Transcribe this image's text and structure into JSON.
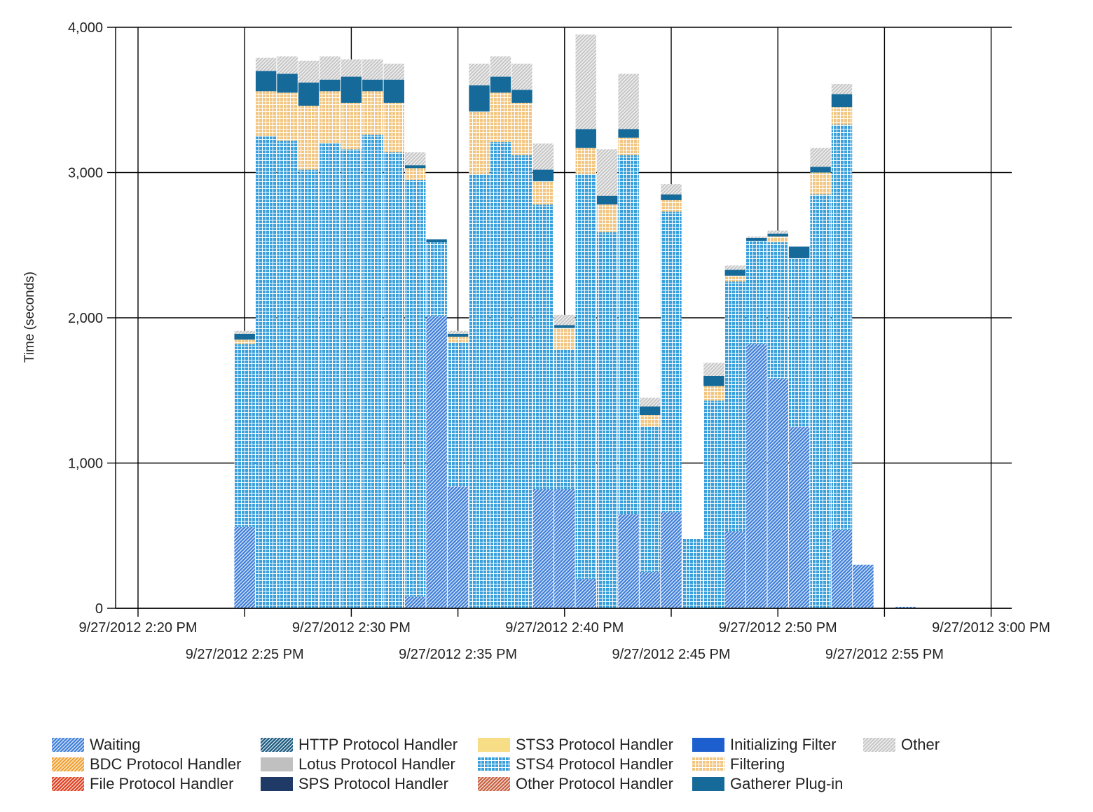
{
  "chart_data": {
    "type": "bar",
    "stacked": true,
    "ylabel": "Time (seconds)",
    "xlabel": "",
    "ylim": [
      0,
      4000
    ],
    "yticks": [
      "0",
      "1,000",
      "2,000",
      "3,000",
      "4,000"
    ],
    "xticks": [
      "9/27/2012 2:20 PM",
      "9/27/2012 2:25 PM",
      "9/27/2012 2:30 PM",
      "9/27/2012 2:35 PM",
      "9/27/2012 2:40 PM",
      "9/27/2012 2:45 PM",
      "9/27/2012 2:50 PM",
      "9/27/2012 2:55 PM",
      "9/27/2012 3:00 PM"
    ],
    "grid": true,
    "legend_position": "bottom",
    "bin_minutes": 1,
    "categories": [
      "2:25",
      "2:26",
      "2:27",
      "2:28",
      "2:29",
      "2:30",
      "2:31",
      "2:32",
      "2:33",
      "2:34",
      "2:35",
      "2:36",
      "2:37",
      "2:38",
      "2:39",
      "2:40",
      "2:41",
      "2:42",
      "2:43",
      "2:44",
      "2:45",
      "2:46",
      "2:47",
      "2:48",
      "2:49",
      "2:50",
      "2:51",
      "2:52",
      "2:53",
      "2:54",
      "2:55",
      "2:56",
      "2:57",
      "2:58",
      "2:59"
    ],
    "series": [
      {
        "name": "Waiting",
        "color": "#3f7fd9",
        "pattern": "diag",
        "values": [
          560,
          0,
          0,
          0,
          0,
          0,
          0,
          0,
          80,
          2010,
          840,
          0,
          0,
          0,
          820,
          820,
          200,
          0,
          650,
          250,
          660,
          0,
          0,
          530,
          1820,
          1580,
          1250,
          0,
          540,
          300,
          0,
          10,
          0,
          0,
          0
        ]
      },
      {
        "name": "BDC Protocol Handler",
        "color": "#f0a030",
        "pattern": "diag",
        "values": [
          0,
          0,
          0,
          0,
          0,
          0,
          0,
          0,
          0,
          0,
          0,
          0,
          0,
          0,
          0,
          0,
          0,
          0,
          0,
          0,
          0,
          0,
          0,
          0,
          0,
          0,
          0,
          0,
          0,
          0,
          0,
          0,
          0,
          0,
          0
        ]
      },
      {
        "name": "File Protocol Handler",
        "color": "#e04020",
        "pattern": "diag",
        "values": [
          0,
          0,
          0,
          0,
          0,
          0,
          0,
          0,
          0,
          0,
          0,
          0,
          0,
          0,
          0,
          0,
          0,
          0,
          0,
          0,
          0,
          0,
          0,
          0,
          0,
          0,
          0,
          0,
          0,
          0,
          0,
          0,
          0,
          0,
          0
        ]
      },
      {
        "name": "HTTP Protocol Handler",
        "color": "#1a5a80",
        "pattern": "diag",
        "values": [
          0,
          0,
          0,
          0,
          0,
          0,
          0,
          0,
          0,
          0,
          0,
          0,
          0,
          0,
          0,
          0,
          0,
          0,
          0,
          0,
          0,
          0,
          0,
          0,
          0,
          0,
          0,
          0,
          0,
          0,
          0,
          0,
          0,
          0,
          0
        ]
      },
      {
        "name": "Lotus Protocol Handler",
        "color": "#c0c0c0",
        "pattern": "solid",
        "values": [
          0,
          0,
          0,
          0,
          0,
          0,
          0,
          0,
          0,
          0,
          0,
          0,
          0,
          0,
          0,
          0,
          0,
          0,
          0,
          0,
          0,
          0,
          0,
          0,
          0,
          0,
          0,
          0,
          0,
          0,
          0,
          0,
          0,
          0,
          0
        ]
      },
      {
        "name": "SPS Protocol Handler",
        "color": "#1f3a66",
        "pattern": "solid",
        "values": [
          0,
          0,
          0,
          0,
          0,
          0,
          0,
          0,
          0,
          0,
          0,
          0,
          0,
          0,
          0,
          0,
          0,
          0,
          0,
          0,
          0,
          0,
          0,
          0,
          0,
          0,
          0,
          0,
          0,
          0,
          0,
          0,
          0,
          0,
          0
        ]
      },
      {
        "name": "STS3 Protocol Handler",
        "color": "#f7dd85",
        "pattern": "solid",
        "values": [
          0,
          0,
          0,
          0,
          0,
          0,
          0,
          0,
          0,
          0,
          0,
          0,
          0,
          0,
          0,
          0,
          0,
          0,
          0,
          0,
          0,
          0,
          0,
          0,
          0,
          0,
          0,
          0,
          0,
          0,
          0,
          0,
          0,
          0,
          0
        ]
      },
      {
        "name": "STS4 Protocol Handler",
        "color": "#3aa0dc",
        "pattern": "grid",
        "values": [
          1260,
          3250,
          3220,
          3020,
          3200,
          3160,
          3260,
          3140,
          2870,
          510,
          990,
          2990,
          3210,
          3120,
          1960,
          960,
          2790,
          2590,
          2470,
          1000,
          2070,
          480,
          1430,
          1720,
          710,
          940,
          1160,
          2850,
          2790,
          0,
          0,
          0,
          0,
          0,
          0
        ]
      },
      {
        "name": "Other Protocol Handler",
        "color": "#c86040",
        "pattern": "diag",
        "values": [
          0,
          0,
          0,
          0,
          0,
          0,
          0,
          0,
          0,
          0,
          0,
          0,
          0,
          0,
          0,
          0,
          0,
          0,
          0,
          0,
          0,
          0,
          0,
          0,
          0,
          0,
          0,
          0,
          0,
          0,
          0,
          0,
          0,
          0,
          0
        ]
      },
      {
        "name": "Initializing Filter",
        "color": "#1e5fd0",
        "pattern": "solid",
        "values": [
          0,
          0,
          0,
          0,
          0,
          0,
          0,
          0,
          0,
          0,
          0,
          0,
          0,
          0,
          0,
          0,
          0,
          0,
          0,
          0,
          0,
          0,
          0,
          0,
          0,
          0,
          0,
          0,
          0,
          0,
          0,
          0,
          0,
          0,
          0
        ]
      },
      {
        "name": "Filtering",
        "color": "#f2c681",
        "pattern": "grid",
        "values": [
          30,
          310,
          330,
          440,
          360,
          320,
          300,
          340,
          80,
          0,
          40,
          430,
          340,
          360,
          160,
          150,
          180,
          190,
          120,
          80,
          80,
          0,
          100,
          40,
          0,
          40,
          0,
          150,
          120,
          0,
          0,
          0,
          0,
          0,
          0
        ]
      },
      {
        "name": "Gatherer Plug-in",
        "color": "#156a9a",
        "pattern": "solid",
        "values": [
          40,
          140,
          130,
          160,
          80,
          180,
          80,
          160,
          20,
          20,
          20,
          180,
          110,
          90,
          80,
          20,
          130,
          60,
          60,
          60,
          40,
          0,
          70,
          40,
          20,
          20,
          80,
          40,
          90,
          0,
          0,
          0,
          0,
          0,
          0
        ]
      },
      {
        "name": "Other",
        "color": "#c7c7c7",
        "pattern": "diag",
        "values": [
          20,
          90,
          120,
          150,
          160,
          120,
          140,
          110,
          90,
          0,
          20,
          150,
          140,
          180,
          180,
          70,
          650,
          320,
          380,
          60,
          70,
          0,
          90,
          30,
          10,
          20,
          0,
          130,
          70,
          0,
          0,
          0,
          0,
          0,
          0
        ]
      }
    ]
  }
}
